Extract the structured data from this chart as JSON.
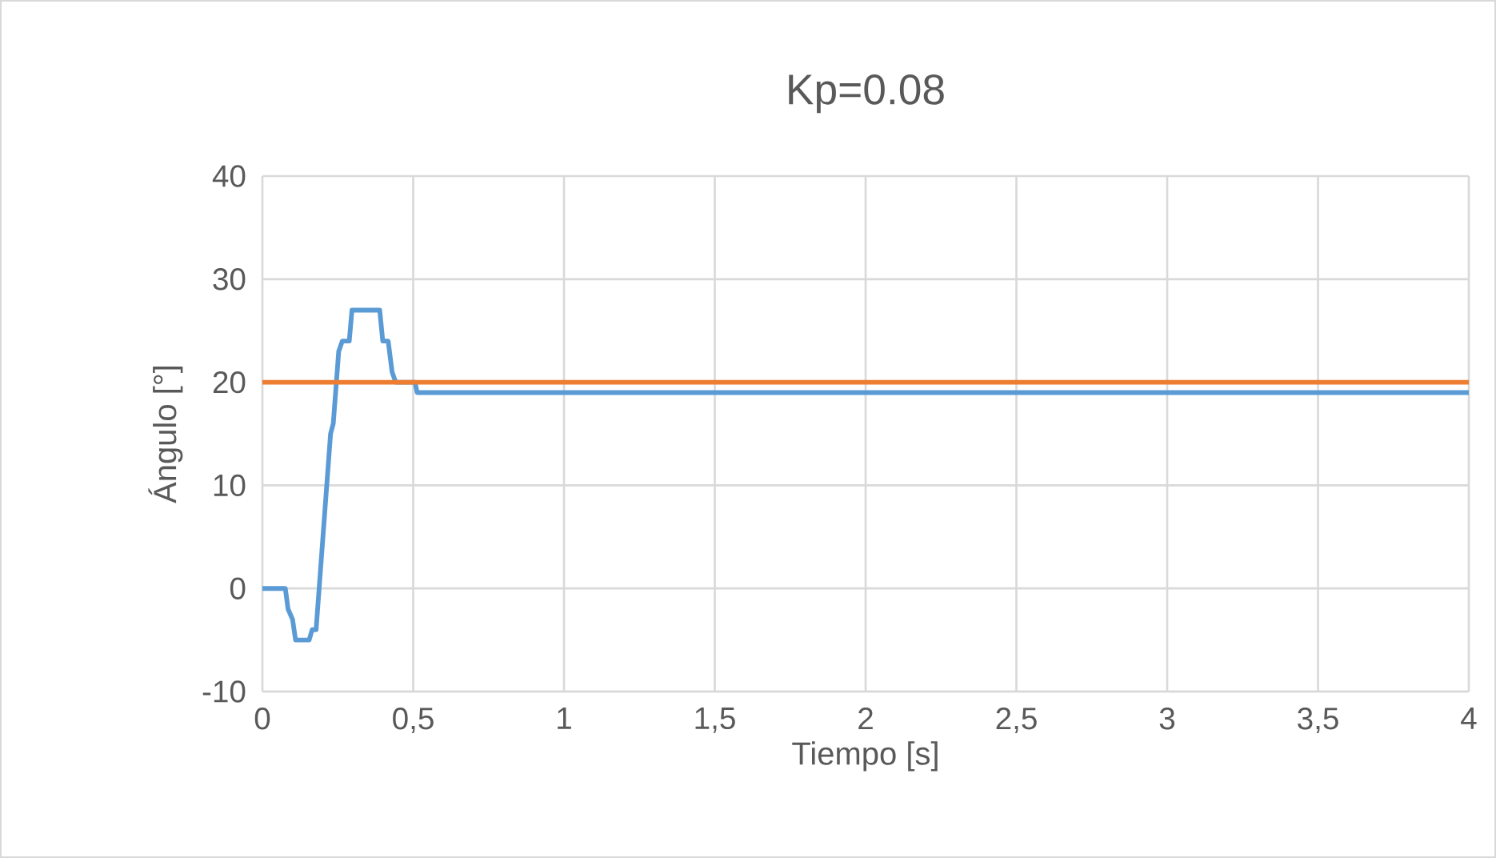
{
  "chart_data": {
    "type": "line",
    "title": "Kp=0.08",
    "xlabel": "Tiempo [s]",
    "ylabel": "Ángulo [°]",
    "xlim": [
      0,
      4
    ],
    "ylim": [
      -10,
      40
    ],
    "xticks": [
      0,
      {
        "value": 0.5,
        "label": "0,5"
      },
      1,
      {
        "value": 1.5,
        "label": "1,5"
      },
      2,
      {
        "value": 2.5,
        "label": "2,5"
      },
      3,
      {
        "value": 3.5,
        "label": "3,5"
      },
      4
    ],
    "yticks": [
      -10,
      0,
      10,
      20,
      30,
      40
    ],
    "grid": true,
    "marker": "none",
    "line_style": "solid",
    "series": [
      {
        "color": "#5b9bd5",
        "x": [
          0,
          0.076,
          0.085,
          0.1,
          0.11,
          0.155,
          0.165,
          0.178,
          0.226,
          0.235,
          0.253,
          0.265,
          0.288,
          0.297,
          0.389,
          0.399,
          0.417,
          0.43,
          0.442,
          0.506,
          0.513,
          4
        ],
        "values": [
          0,
          0,
          -2,
          -3,
          -5,
          -5,
          -4,
          -4,
          15,
          16,
          23,
          24,
          24,
          27,
          27,
          24,
          24,
          21,
          20,
          20,
          19,
          19
        ]
      },
      {
        "color": "#ed7d31",
        "x": [
          0,
          4
        ],
        "values": [
          20,
          20
        ]
      }
    ]
  }
}
